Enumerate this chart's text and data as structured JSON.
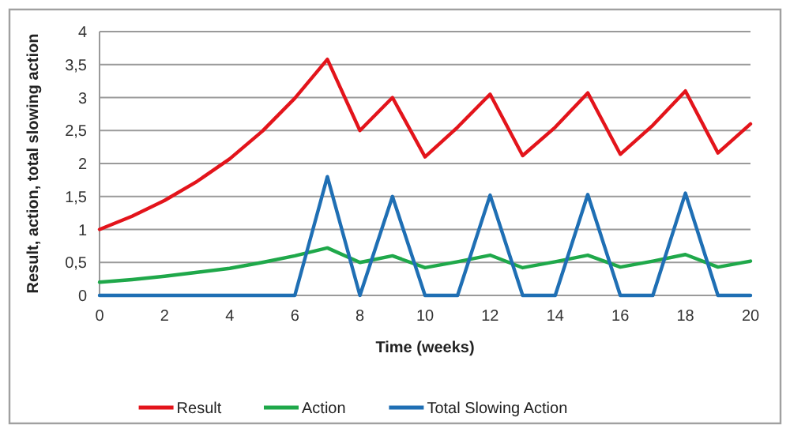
{
  "chart_data": {
    "type": "line",
    "xlabel": "Time (weeks)",
    "ylabel": "Result, action, total slowing action",
    "x": [
      0,
      1,
      2,
      3,
      4,
      5,
      6,
      7,
      8,
      9,
      10,
      11,
      12,
      13,
      14,
      15,
      16,
      17,
      18,
      19,
      20
    ],
    "series": [
      {
        "name": "Result",
        "color": "#e3141b",
        "values": [
          1,
          1.2,
          1.44,
          1.73,
          2.07,
          2.49,
          2.99,
          3.58,
          2.5,
          3.0,
          2.1,
          2.55,
          3.05,
          2.12,
          2.55,
          3.07,
          2.14,
          2.58,
          3.1,
          2.16,
          2.6
        ]
      },
      {
        "name": "Action",
        "color": "#1fa84a",
        "values": [
          0.2,
          0.24,
          0.29,
          0.35,
          0.41,
          0.5,
          0.6,
          0.72,
          0.5,
          0.6,
          0.42,
          0.51,
          0.61,
          0.42,
          0.51,
          0.61,
          0.43,
          0.52,
          0.62,
          0.43,
          0.52
        ]
      },
      {
        "name": "Total Slowing Action",
        "color": "#1f6fb4",
        "values": [
          0,
          0,
          0,
          0,
          0,
          0,
          0,
          1.8,
          0,
          1.5,
          0,
          0,
          1.52,
          0,
          0,
          1.53,
          0,
          0,
          1.55,
          0,
          0
        ]
      }
    ],
    "xlim": [
      0,
      20
    ],
    "xticks": [
      0,
      2,
      4,
      6,
      8,
      10,
      12,
      14,
      16,
      18,
      20
    ],
    "ylim": [
      0,
      4
    ],
    "yticks": [
      0,
      {
        "value": 0.5,
        "label": "0,5"
      },
      1,
      {
        "value": 1.5,
        "label": "1,5"
      },
      2,
      {
        "value": 2.5,
        "label": "2,5"
      },
      3,
      {
        "value": 3.5,
        "label": "3,5"
      },
      4
    ],
    "grid": "y",
    "legend": "bottom",
    "marker": "none",
    "line_style": "solid"
  }
}
